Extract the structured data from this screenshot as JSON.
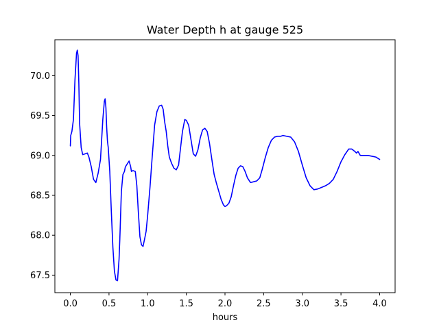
{
  "chart_data": {
    "type": "line",
    "title": "Water Depth h at gauge 525",
    "xlabel": "hours",
    "ylabel": "",
    "xlim": [
      -0.2,
      4.2
    ],
    "ylim": [
      67.28,
      70.45
    ],
    "xticks": [
      0.0,
      0.5,
      1.0,
      1.5,
      2.0,
      2.5,
      3.0,
      3.5,
      4.0
    ],
    "xtick_labels": [
      "0.0",
      "0.5",
      "1.0",
      "1.5",
      "2.0",
      "2.5",
      "3.0",
      "3.5",
      "4.0"
    ],
    "yticks": [
      67.5,
      68.0,
      68.5,
      69.0,
      69.5,
      70.0
    ],
    "ytick_labels": [
      "67.5",
      "68.0",
      "68.5",
      "69.0",
      "69.5",
      "70.0"
    ],
    "grid": false,
    "series": [
      {
        "color": "#0000ff",
        "x": [
          0.0,
          0.005,
          0.02,
          0.04,
          0.06,
          0.08,
          0.09,
          0.1,
          0.11,
          0.12,
          0.14,
          0.16,
          0.19,
          0.22,
          0.24,
          0.27,
          0.3,
          0.33,
          0.36,
          0.39,
          0.42,
          0.44,
          0.45,
          0.46,
          0.47,
          0.48,
          0.49,
          0.51,
          0.53,
          0.55,
          0.57,
          0.59,
          0.61,
          0.63,
          0.64,
          0.66,
          0.68,
          0.7,
          0.71,
          0.72,
          0.74,
          0.76,
          0.78,
          0.79,
          0.81,
          0.84,
          0.86,
          0.88,
          0.9,
          0.92,
          0.94,
          0.96,
          0.98,
          1.0,
          1.03,
          1.06,
          1.09,
          1.12,
          1.15,
          1.18,
          1.2,
          1.22,
          1.24,
          1.26,
          1.28,
          1.31,
          1.34,
          1.37,
          1.4,
          1.42,
          1.45,
          1.48,
          1.5,
          1.53,
          1.56,
          1.59,
          1.62,
          1.65,
          1.68,
          1.71,
          1.74,
          1.77,
          1.8,
          1.83,
          1.86,
          1.89,
          1.92,
          1.95,
          1.98,
          2.0,
          2.02,
          2.05,
          2.08,
          2.11,
          2.14,
          2.17,
          2.2,
          2.23,
          2.26,
          2.29,
          2.33,
          2.37,
          2.41,
          2.45,
          2.48,
          2.52,
          2.56,
          2.6,
          2.64,
          2.68,
          2.72,
          2.75,
          2.8,
          2.85,
          2.9,
          2.95,
          3.0,
          3.05,
          3.1,
          3.15,
          3.2,
          3.25,
          3.3,
          3.35,
          3.4,
          3.45,
          3.5,
          3.55,
          3.6,
          3.64,
          3.68,
          3.7,
          3.72,
          3.75,
          3.8,
          3.85,
          3.9,
          3.95,
          4.0
        ],
        "y": [
          69.12,
          69.25,
          69.3,
          69.45,
          69.95,
          70.28,
          70.32,
          70.25,
          69.9,
          69.4,
          69.1,
          69.01,
          69.02,
          69.03,
          68.98,
          68.86,
          68.7,
          68.66,
          68.78,
          68.95,
          69.45,
          69.68,
          69.71,
          69.6,
          69.35,
          69.18,
          69.1,
          68.8,
          68.3,
          67.85,
          67.55,
          67.44,
          67.43,
          67.7,
          67.95,
          68.55,
          68.76,
          68.8,
          68.85,
          68.87,
          68.9,
          68.93,
          68.86,
          68.8,
          68.81,
          68.8,
          68.62,
          68.28,
          67.98,
          67.88,
          67.86,
          67.95,
          68.05,
          68.25,
          68.6,
          69.0,
          69.38,
          69.55,
          69.62,
          69.63,
          69.58,
          69.42,
          69.3,
          69.12,
          68.98,
          68.9,
          68.84,
          68.82,
          68.88,
          69.05,
          69.3,
          69.45,
          69.44,
          69.38,
          69.2,
          69.02,
          68.99,
          69.07,
          69.22,
          69.32,
          69.34,
          69.3,
          69.15,
          68.95,
          68.76,
          68.65,
          68.55,
          68.45,
          68.38,
          68.36,
          68.37,
          68.4,
          68.48,
          68.62,
          68.75,
          68.84,
          68.87,
          68.86,
          68.8,
          68.72,
          68.66,
          68.67,
          68.68,
          68.72,
          68.82,
          68.97,
          69.1,
          69.19,
          69.23,
          69.24,
          69.24,
          69.25,
          69.24,
          69.23,
          69.17,
          69.05,
          68.88,
          68.72,
          68.62,
          68.57,
          68.58,
          68.6,
          68.62,
          68.65,
          68.7,
          68.8,
          68.92,
          69.01,
          69.08,
          69.08,
          69.05,
          69.03,
          69.05,
          69.0,
          69.0,
          69.0,
          68.99,
          68.98,
          68.95
        ]
      }
    ]
  }
}
